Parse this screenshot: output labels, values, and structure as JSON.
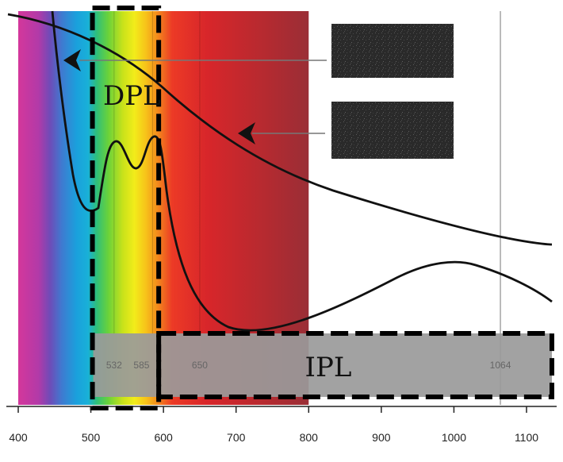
{
  "diagram": {
    "x_axis": {
      "min": 390,
      "max": 1140,
      "ticks": [
        "400",
        "500",
        "600",
        "700",
        "800",
        "900",
        "1000",
        "1100"
      ],
      "tick_values": [
        400,
        500,
        600,
        700,
        800,
        900,
        1000,
        1100
      ]
    },
    "regions": {
      "dpl": {
        "label": "DPL",
        "start_nm": 500,
        "end_nm": 600
      },
      "ipl": {
        "label": "IPL",
        "start_nm": 500,
        "end_nm": 1140
      }
    },
    "markers": [
      {
        "label": "532",
        "nm": 532
      },
      {
        "label": "585",
        "nm": 585
      },
      {
        "label": "650",
        "nm": 650
      },
      {
        "label": "1064",
        "nm": 1064
      }
    ],
    "spectrum": {
      "start_nm": 400,
      "end_nm": 800
    },
    "colors": {
      "curve": "#111111",
      "ipl_band": "#9a9a9a",
      "dashes": "#000000"
    },
    "icons": {
      "arrow": "arrow-left-icon",
      "thumbnail": "noise-texture-thumbnail"
    }
  }
}
